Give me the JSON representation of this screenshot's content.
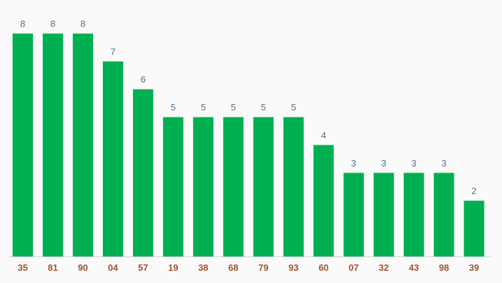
{
  "chart_data": {
    "type": "bar",
    "categories": [
      "35",
      "81",
      "90",
      "04",
      "57",
      "19",
      "38",
      "68",
      "79",
      "93",
      "60",
      "07",
      "32",
      "43",
      "98",
      "39"
    ],
    "values": [
      8,
      8,
      8,
      7,
      6,
      5,
      5,
      5,
      5,
      5,
      4,
      3,
      3,
      3,
      3,
      2
    ],
    "color": "#00b050"
  }
}
